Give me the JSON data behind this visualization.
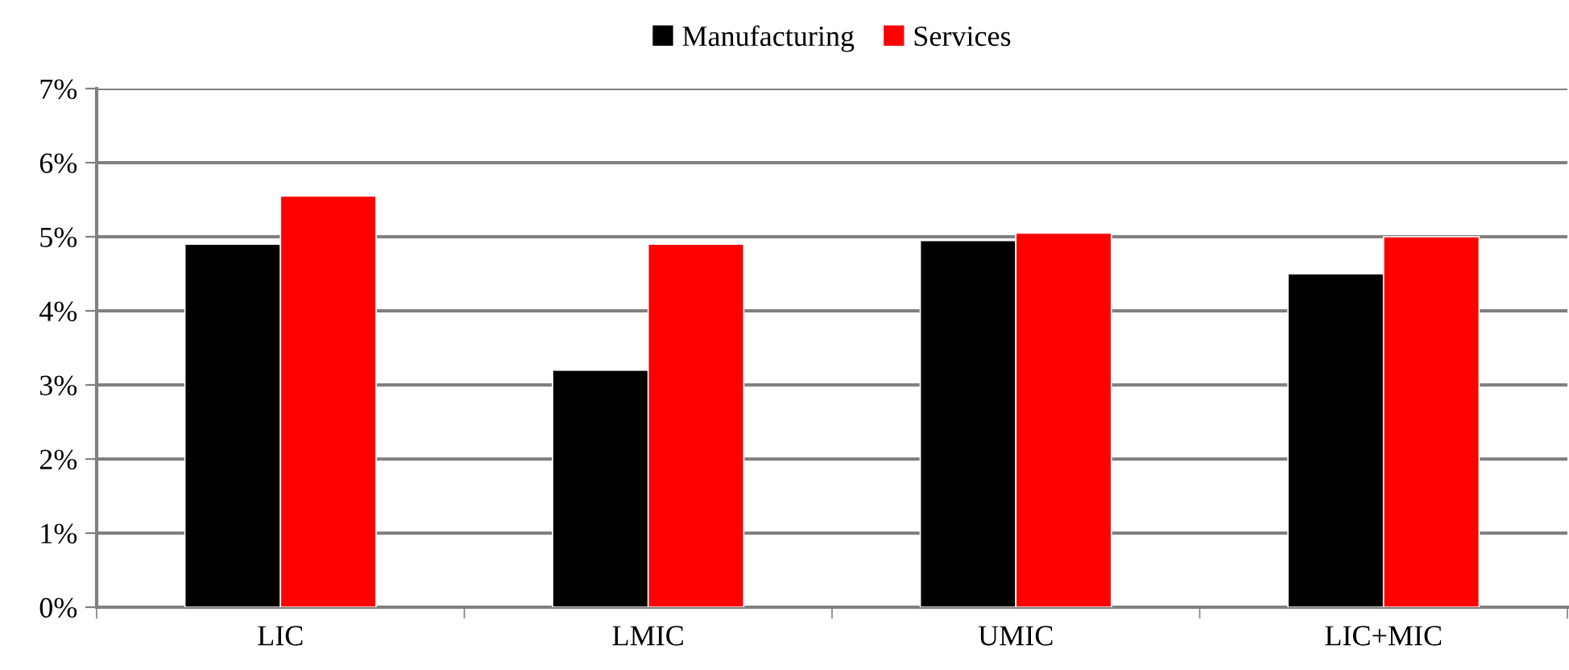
{
  "chart_data": {
    "type": "bar",
    "categories": [
      "LIC",
      "LMIC",
      "UMIC",
      "LIC+MIC"
    ],
    "series": [
      {
        "name": "Manufacturing",
        "color": "#000000",
        "values": [
          4.9,
          3.2,
          4.95,
          4.5
        ]
      },
      {
        "name": "Services",
        "color": "#ff0000",
        "values": [
          5.55,
          4.9,
          5.05,
          5.0
        ]
      }
    ],
    "ylim": [
      0,
      7
    ],
    "yticks": [
      {
        "value": 0,
        "label": "0%"
      },
      {
        "value": 1,
        "label": "1%"
      },
      {
        "value": 2,
        "label": "2%"
      },
      {
        "value": 3,
        "label": "3%"
      },
      {
        "value": 4,
        "label": "4%"
      },
      {
        "value": 5,
        "label": "5%"
      },
      {
        "value": 6,
        "label": "6%"
      },
      {
        "value": 7,
        "label": "7%"
      }
    ],
    "grid": "y",
    "legend": "top"
  }
}
